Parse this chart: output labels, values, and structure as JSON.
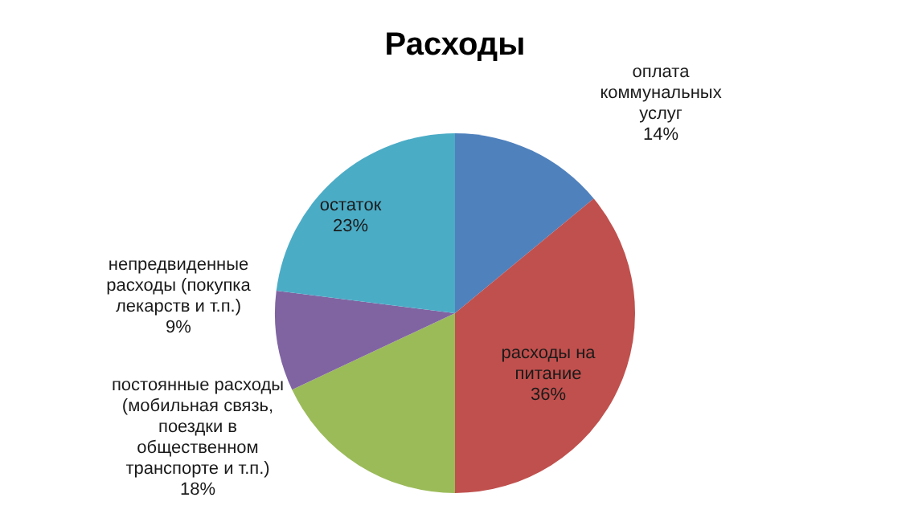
{
  "chart_data": {
    "type": "pie",
    "title": "Расходы",
    "categories": [
      "оплата коммунальных услуг",
      "расходы на питание",
      "постоянные расходы (мобильная связь, поездки в общественном транспорте и т.п.)",
      "непредвиденные расходы (покупка лекарств и т.п.)",
      "остаток"
    ],
    "values": [
      14,
      36,
      18,
      9,
      23
    ],
    "colors": [
      "#4f81bd",
      "#c0504d",
      "#9bbb59",
      "#8064a2",
      "#4bacc6"
    ],
    "value_labels": [
      "14%",
      "36%",
      "18%",
      "9%",
      "23%"
    ],
    "legend": false
  }
}
